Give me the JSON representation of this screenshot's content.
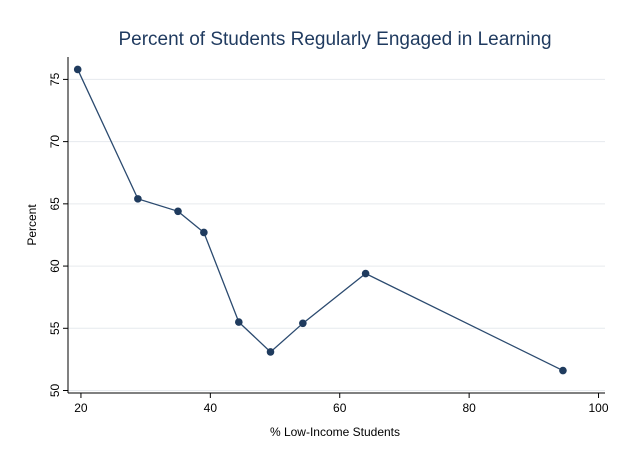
{
  "chart_data": {
    "type": "line",
    "title": "Percent of Students Regularly Engaged in Learning",
    "xlabel": "% Low-Income Students",
    "ylabel": "Percent",
    "xlim": [
      18,
      101
    ],
    "ylim": [
      49.8,
      76.8
    ],
    "xticks": [
      20,
      40,
      60,
      80,
      100
    ],
    "yticks": [
      50,
      55,
      60,
      65,
      70,
      75
    ],
    "grid": true,
    "series": [
      {
        "x": [
          19.5,
          28.8,
          35,
          39,
          44.4,
          49.3,
          54.3,
          64,
          94.5
        ],
        "y": [
          75.8,
          65.4,
          64.4,
          62.7,
          55.5,
          53.1,
          55.4,
          59.4,
          51.6
        ]
      }
    ],
    "colors": {
      "line": "#2b4a6f",
      "marker": "#1f3b5e",
      "title": "#1f3a5f",
      "grid": "#e6eaee"
    }
  }
}
